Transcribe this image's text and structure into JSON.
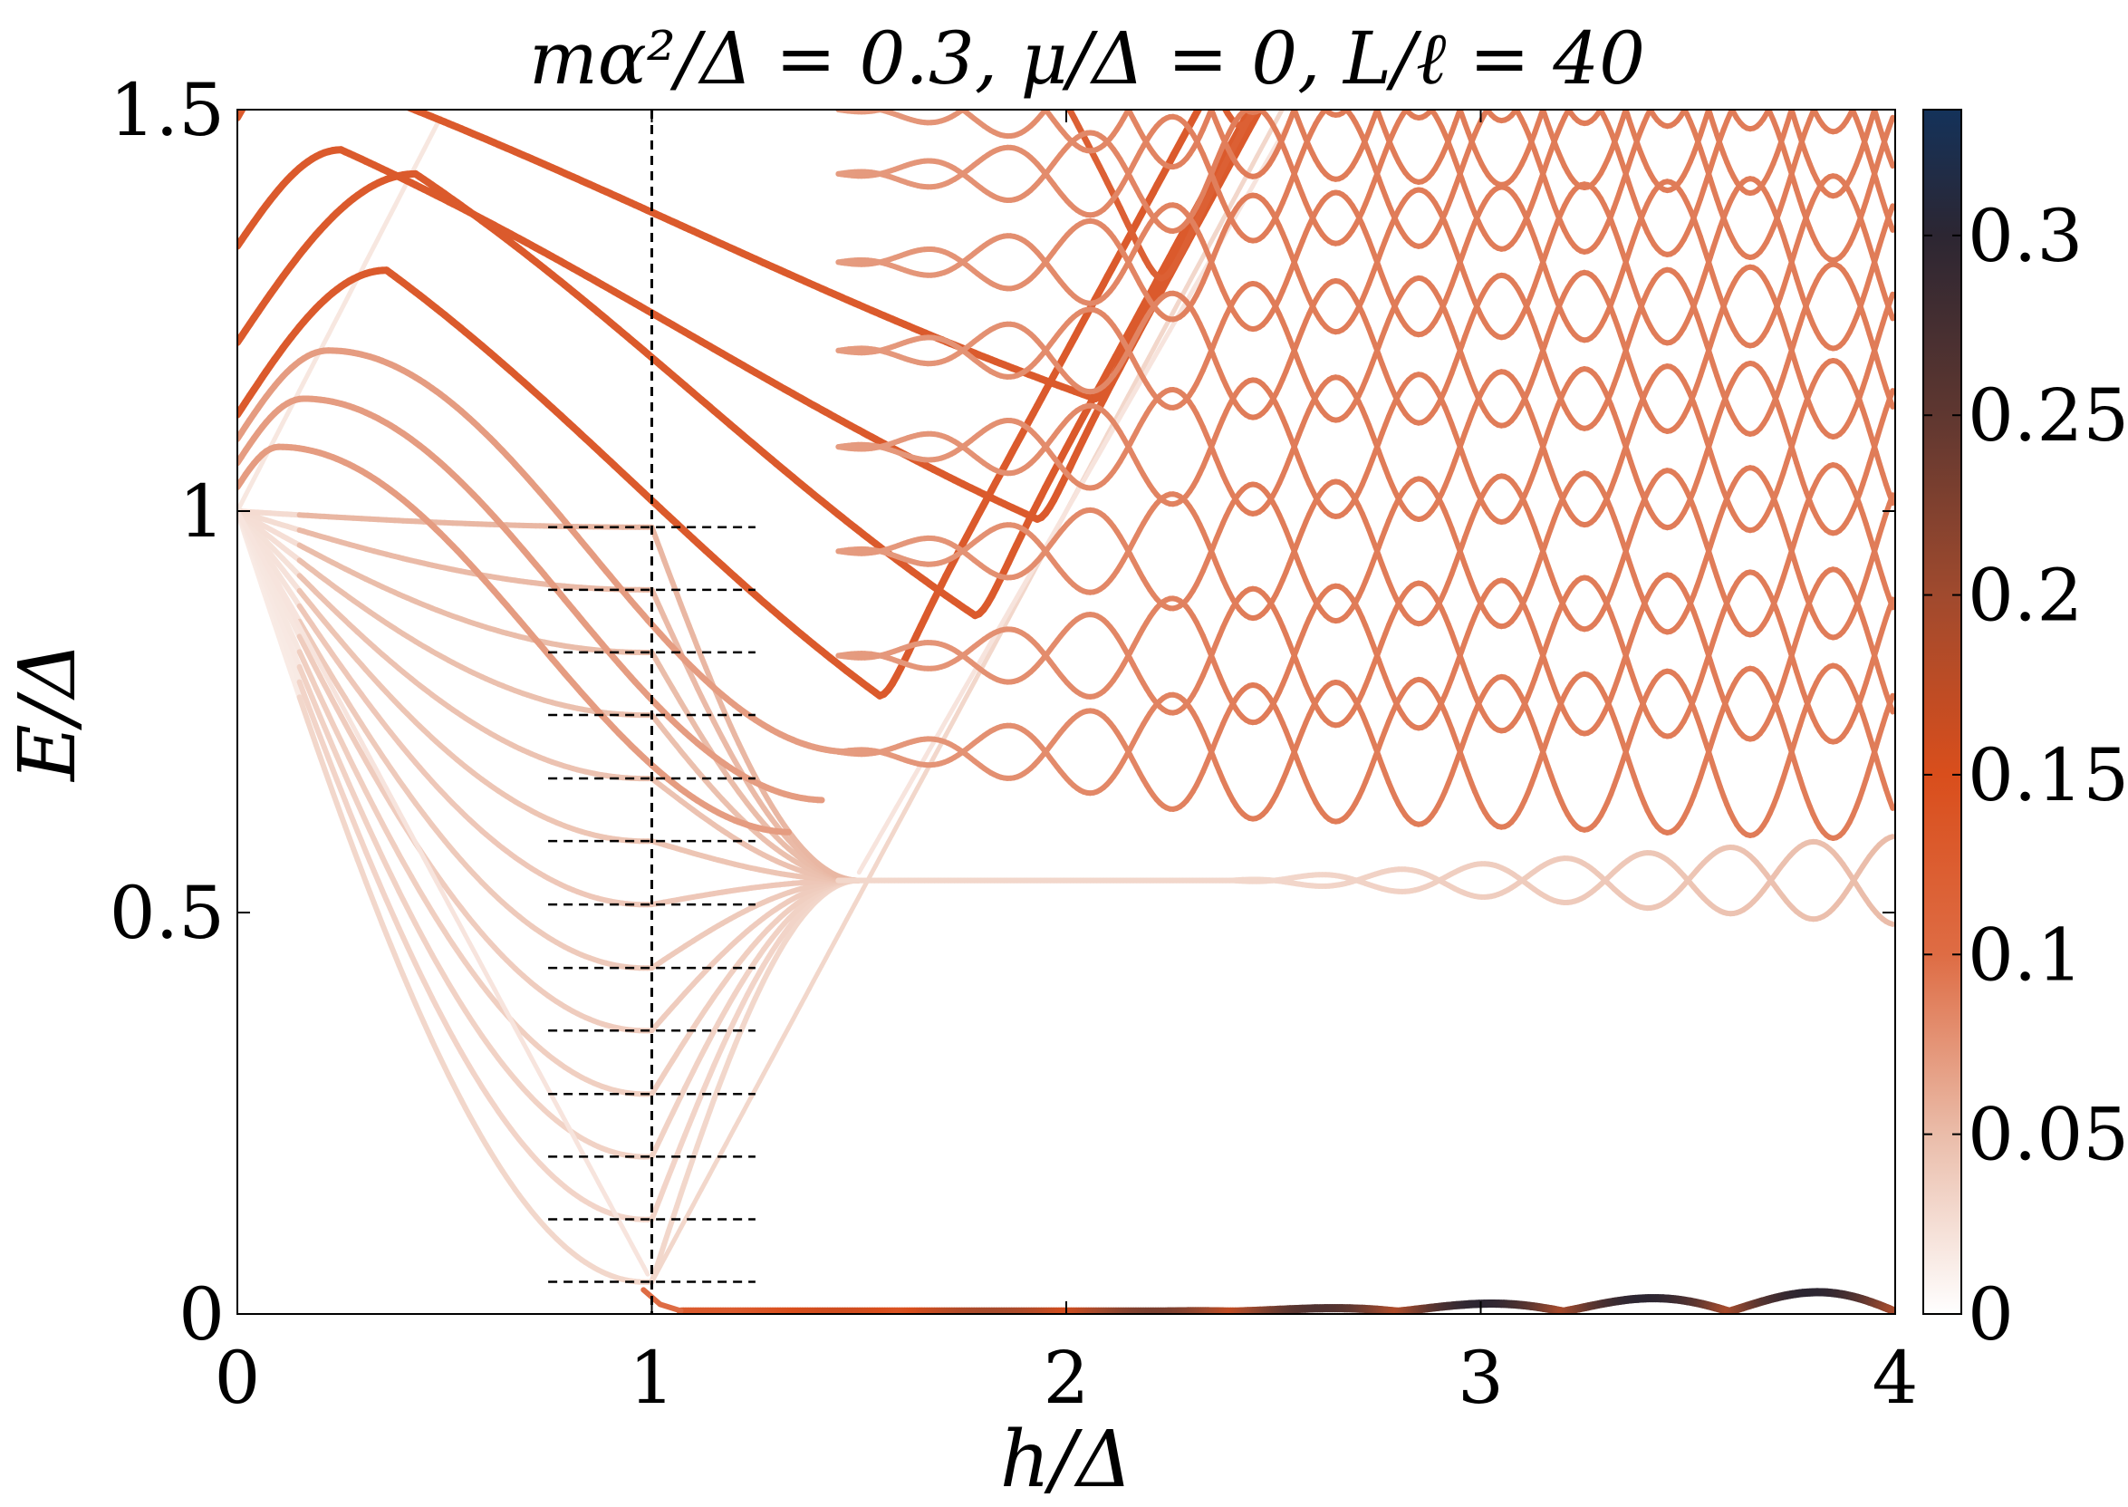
{
  "chart_data": {
    "type": "heatmap",
    "title": "mα²/Δ = 0.3, μ/Δ = 0, L/ℓ = 40",
    "xlabel": "h/Δ",
    "ylabel": "E/Δ",
    "xlim": [
      0,
      4
    ],
    "ylim": [
      0,
      1.5
    ],
    "x_ticks": [
      {
        "value": 0,
        "label": "0"
      },
      {
        "value": 1,
        "label": "1"
      },
      {
        "value": 2,
        "label": "2"
      },
      {
        "value": 3,
        "label": "3"
      },
      {
        "value": 4,
        "label": "4"
      }
    ],
    "y_ticks": [
      {
        "value": 0,
        "label": "0"
      },
      {
        "value": 0.5,
        "label": "0.5"
      },
      {
        "value": 1,
        "label": "1"
      },
      {
        "value": 1.5,
        "label": "1.5"
      }
    ],
    "colorbar": {
      "range": [
        0,
        0.335
      ],
      "ticks": [
        {
          "value": 0,
          "label": "0"
        },
        {
          "value": 0.05,
          "label": "0.05"
        },
        {
          "value": 0.1,
          "label": "0.1"
        },
        {
          "value": 0.15,
          "label": "0.15"
        },
        {
          "value": 0.2,
          "label": "0.2"
        },
        {
          "value": 0.25,
          "label": "0.25"
        },
        {
          "value": 0.3,
          "label": "0.3"
        }
      ],
      "stops": [
        {
          "value": 0,
          "color": "#ffffff"
        },
        {
          "value": 0.05,
          "color": "#eabca9"
        },
        {
          "value": 0.1,
          "color": "#de6c44"
        },
        {
          "value": 0.15,
          "color": "#d94e1c"
        },
        {
          "value": 0.2,
          "color": "#a04a2e"
        },
        {
          "value": 0.25,
          "color": "#5f3730"
        },
        {
          "value": 0.3,
          "color": "#2c2632"
        },
        {
          "value": 0.335,
          "color": "#14325a"
        }
      ]
    },
    "reference_lines": {
      "vertical_x": 1,
      "horizontal_segments": {
        "x_range": [
          0.75,
          1.25
        ],
        "y_values": [
          0.04,
          0.118,
          0.196,
          0.274,
          0.353,
          0.431,
          0.51,
          0.589,
          0.667,
          0.746,
          0.824,
          0.902,
          0.98
        ]
      }
    },
    "features": {
      "low_bands": {
        "count": 13,
        "start": [
          0,
          1.0
        ],
        "minimum_x": 1.0,
        "minima_E": [
          0.04,
          0.118,
          0.196,
          0.274,
          0.353,
          0.431,
          0.51,
          0.589,
          0.667,
          0.746,
          0.824,
          0.902,
          0.98
        ],
        "converge_E": 0.54,
        "converge_x": 1.5
      },
      "upper_bands": {
        "start_E": [
          1.12,
          1.21,
          1.33,
          1.49
        ],
        "peaks": [
          [
            0.36,
            1.3
          ],
          [
            0.43,
            1.42
          ]
        ],
        "valley_points": [
          [
            1.55,
            0.77
          ],
          [
            1.78,
            0.87
          ],
          [
            1.93,
            0.99
          ],
          [
            2.07,
            1.14
          ],
          [
            2.23,
            1.29
          ],
          [
            2.42,
            1.48
          ]
        ]
      },
      "oscillating_bands": {
        "count": 9,
        "start_x": 1.45,
        "base_E": [
          0.7,
          0.82,
          0.95,
          1.08,
          1.2,
          1.31,
          1.42,
          1.5,
          1.58
        ],
        "period": 0.4,
        "end_amplitude": 0.11
      },
      "gap_band": {
        "flat_E": 0.54,
        "x_range": [
          1.45,
          4.0
        ],
        "oscillation_start_x": 2.4,
        "end_amplitude": 0.055
      },
      "zero_mode": {
        "onset_x": 1.07,
        "end_x": 4.0,
        "max_E": 0.028,
        "period": 0.4,
        "peak_weight": 0.3
      }
    }
  }
}
